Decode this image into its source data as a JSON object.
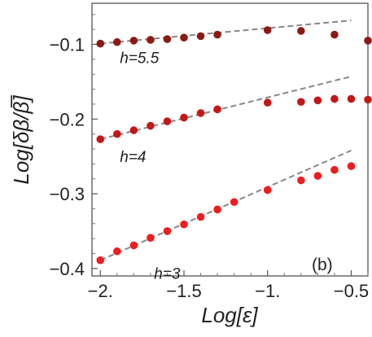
{
  "chart_data": {
    "type": "scatter",
    "title": "",
    "xlabel": "Log[ε]",
    "ylabel": "Log[δβ/β̅]",
    "xlim": [
      -2.05,
      -0.4
    ],
    "ylim": [
      -0.41,
      -0.045
    ],
    "xticks": [
      -2.0,
      -1.5,
      -1.0,
      -0.5
    ],
    "xtick_labels": [
      "-2.",
      "-1.5",
      "-1.",
      "-0.5"
    ],
    "yticks": [
      -0.1,
      -0.2,
      -0.3,
      -0.4
    ],
    "ytick_labels": [
      "-0.1",
      "-0.2",
      "-0.3",
      "-0.4"
    ],
    "panel_label": "(b)",
    "grid": false,
    "series": [
      {
        "name": "h=5.5",
        "color": "#8b1a14",
        "x": [
          -2.0,
          -1.9,
          -1.8,
          -1.7,
          -1.6,
          -1.5,
          -1.4,
          -1.3,
          -1.0,
          -0.8,
          -0.6,
          -0.4
        ],
        "y": [
          -0.099,
          -0.097,
          -0.095,
          -0.094,
          -0.093,
          -0.091,
          -0.089,
          -0.087,
          -0.081,
          -0.082,
          -0.087,
          -0.095
        ],
        "fit_line": {
          "x": [
            -2.0,
            -0.5
          ],
          "y": [
            -0.099,
            -0.068
          ]
        }
      },
      {
        "name": "h=4",
        "color": "#c41818",
        "x": [
          -2.0,
          -1.9,
          -1.8,
          -1.7,
          -1.6,
          -1.5,
          -1.4,
          -1.3,
          -1.0,
          -0.8,
          -0.7,
          -0.6,
          -0.5,
          -0.4
        ],
        "y": [
          -0.227,
          -0.22,
          -0.215,
          -0.209,
          -0.203,
          -0.198,
          -0.192,
          -0.187,
          -0.178,
          -0.177,
          -0.175,
          -0.173,
          -0.173,
          -0.174
        ],
        "fit_line": {
          "x": [
            -2.0,
            -0.5
          ],
          "y": [
            -0.227,
            -0.143
          ]
        }
      },
      {
        "name": "h=3",
        "color": "#ee1e1e",
        "x": [
          -2.0,
          -1.9,
          -1.8,
          -1.7,
          -1.6,
          -1.5,
          -1.4,
          -1.3,
          -1.2,
          -1.0,
          -0.8,
          -0.7,
          -0.6,
          -0.5
        ],
        "y": [
          -0.389,
          -0.377,
          -0.369,
          -0.359,
          -0.35,
          -0.341,
          -0.331,
          -0.321,
          -0.311,
          -0.295,
          -0.282,
          -0.276,
          -0.268,
          -0.263
        ],
        "fit_line": {
          "x": [
            -2.0,
            -0.5
          ],
          "y": [
            -0.389,
            -0.242
          ]
        }
      }
    ],
    "annotations": [
      "h=5.5",
      "h=4",
      "h=3"
    ]
  }
}
